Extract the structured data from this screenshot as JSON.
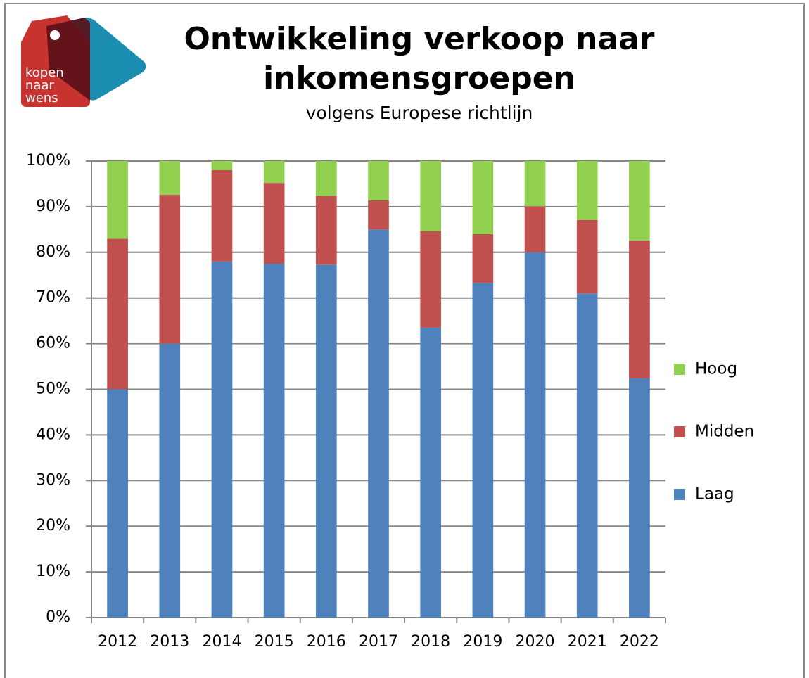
{
  "logo": {
    "lines": [
      "kopen",
      "naar",
      "wens"
    ]
  },
  "chart_data": {
    "type": "stacked_bar",
    "title": [
      "Ontwikkeling verkoop naar",
      "inkomensgroepen"
    ],
    "subtitle": "volgens Europese richtlijn",
    "categories": [
      "2012",
      "2013",
      "2014",
      "2015",
      "2016",
      "2017",
      "2018",
      "2019",
      "2020",
      "2021",
      "2022"
    ],
    "series": [
      {
        "name": "Laag",
        "color": "#4f81bd",
        "values": [
          50,
          60,
          78,
          77.5,
          77.3,
          85,
          63.5,
          73.3,
          80,
          71,
          52.4
        ]
      },
      {
        "name": "Midden",
        "color": "#c0504d",
        "values": [
          33,
          32.6,
          20,
          17.7,
          15.1,
          6.4,
          21.1,
          10.7,
          10.1,
          16.1,
          30.2
        ]
      },
      {
        "name": "Hoog",
        "color": "#92d050",
        "values": [
          17,
          7.4,
          2,
          4.8,
          7.6,
          8.6,
          15.4,
          16,
          9.9,
          12.9,
          17.4
        ]
      }
    ],
    "ylim": [
      0,
      100
    ],
    "yticks": [
      {
        "value": 0,
        "label": "0%"
      },
      {
        "value": 10,
        "label": "10%"
      },
      {
        "value": 20,
        "label": "20%"
      },
      {
        "value": 30,
        "label": "30%"
      },
      {
        "value": 40,
        "label": "40%"
      },
      {
        "value": 50,
        "label": "50%"
      },
      {
        "value": 60,
        "label": "60%"
      },
      {
        "value": 70,
        "label": "70%"
      },
      {
        "value": 80,
        "label": "80%"
      },
      {
        "value": 90,
        "label": "90%"
      },
      {
        "value": 100,
        "label": "100%"
      }
    ],
    "grid": true,
    "legend": "right"
  }
}
